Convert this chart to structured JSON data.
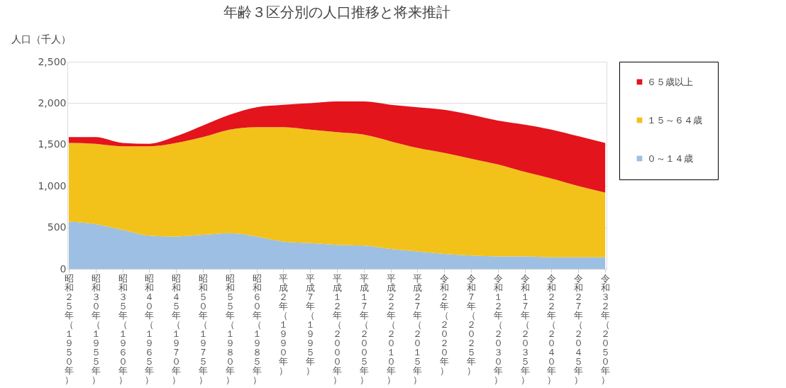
{
  "chart_data": {
    "type": "area",
    "title": "年齢３区分別の人口推移と将来推計",
    "ylabel": "人口（千人）",
    "categories": [
      "昭和２５年（１９５０年）",
      "昭和３０年（１９５５年）",
      "昭和３５年（１９６０年）",
      "昭和４０年（１９６５年）",
      "昭和４５年（１９７０年）",
      "昭和５０年（１９７５年）",
      "昭和５５年（１９８０年）",
      "昭和６０年（１９８５年）",
      "平成２年（１９９０年）",
      "平成７年（１９９５年）",
      "平成１２年（２０００年）",
      "平成１７年（２００５年）",
      "平成２２年（２０１０年）",
      "平成２７年（２０１５年）",
      "令和２年（２０２０年）",
      "令和７年（２０２５年）",
      "令和１２年（２０３０年）",
      "令和１７年（２０３５年）",
      "令和２２年（２０４０年）",
      "令和２７年（２０４５年）",
      "令和３２年（２０５０年）"
    ],
    "stacked": true,
    "series": [
      {
        "name": "０～１４歳",
        "color": "#9dbfe3",
        "values": [
          570,
          540,
          470,
          400,
          390,
          410,
          430,
          390,
          330,
          310,
          290,
          280,
          240,
          210,
          180,
          160,
          150,
          150,
          140,
          140,
          140
        ]
      },
      {
        "name": "１５～６４歳",
        "color": "#f2c21b",
        "values": [
          950,
          970,
          1010,
          1080,
          1130,
          1180,
          1250,
          1320,
          1380,
          1370,
          1360,
          1340,
          1300,
          1250,
          1220,
          1170,
          1110,
          1020,
          950,
          860,
          780
        ]
      },
      {
        "name": "６５歳以上",
        "color": "#e3141c",
        "values": [
          70,
          80,
          40,
          30,
          80,
          140,
          180,
          240,
          270,
          320,
          370,
          400,
          440,
          490,
          520,
          530,
          530,
          570,
          590,
          600,
          600
        ]
      }
    ],
    "ylim": [
      0,
      2500
    ],
    "yticks": [
      0,
      {
        "value": 500,
        "label": "500"
      },
      {
        "value": 1000,
        "label": "1,000"
      },
      {
        "value": 1500,
        "label": "1,500"
      },
      {
        "value": 2000,
        "label": "2,000"
      },
      {
        "value": 2500,
        "label": "2,500"
      }
    ],
    "grid": "y",
    "legend": "right"
  }
}
